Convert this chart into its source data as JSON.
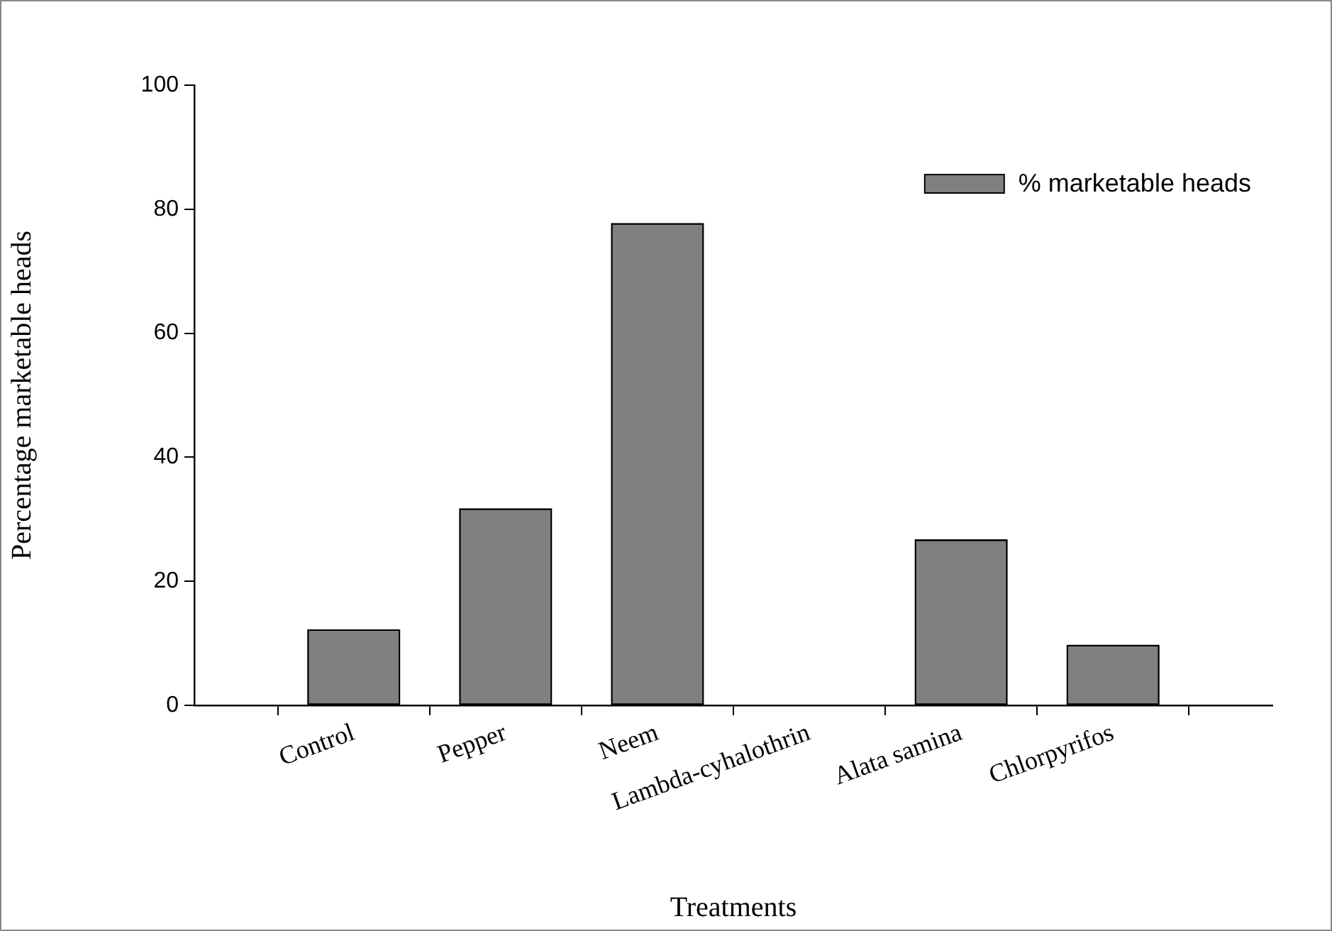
{
  "chart_data": {
    "type": "bar",
    "xlabel": "Treatments",
    "ylabel": "Percentage marketable heads",
    "categories": [
      "Control",
      "Pepper",
      "Neem",
      "Lambda-cyhalothrin",
      "Alata samina",
      "Chlorpyrifos"
    ],
    "series": [
      {
        "name": "% marketable heads",
        "color": "#808080",
        "values": [
          12.2,
          31.7,
          77.7,
          0,
          26.7,
          9.7
        ]
      }
    ],
    "ylim": [
      0,
      100
    ],
    "yticks": [
      0,
      20,
      40,
      60,
      80,
      100
    ],
    "grid": false,
    "legend": "top right"
  }
}
